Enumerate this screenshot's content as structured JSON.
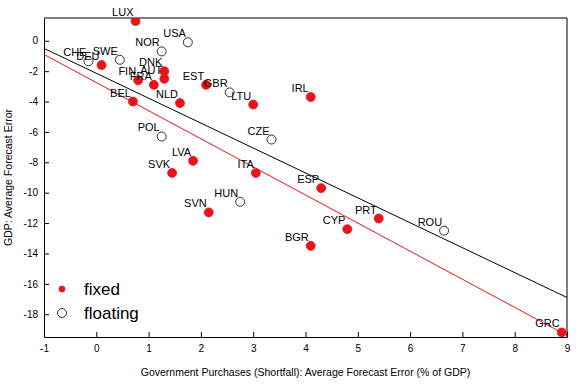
{
  "chart_data": {
    "type": "scatter",
    "x_label": "Government Purchases (Shortfall): Average Forecast Error (% of GDP)",
    "y_label": "GDP: Average Forecast Error",
    "xlim": [
      -1,
      9
    ],
    "ylim": [
      -19.5,
      1.5
    ],
    "xticks": [
      -1,
      0,
      1,
      2,
      3,
      4,
      5,
      6,
      7,
      8,
      9
    ],
    "yticks": [
      -18,
      -16,
      -14,
      -12,
      -10,
      -8,
      -6,
      -4,
      -2,
      0
    ],
    "grid": false,
    "legend": "lower left",
    "series": [
      {
        "name": "fixed",
        "color": "#e8141b",
        "marker": "filled",
        "labels": [
          "LUX",
          "DEU",
          "FIN",
          "AUT",
          "DNK",
          "FRA",
          "BEL",
          "NLD",
          "EST",
          "LTU",
          "IRL",
          "LVA",
          "SVK",
          "ITA",
          "ESP",
          "SVN",
          "CYP",
          "PRT",
          "BGR",
          "GRC"
        ],
        "x": [
          0.75,
          0.1,
          0.8,
          1.3,
          1.3,
          1.1,
          0.7,
          1.6,
          2.1,
          3.0,
          4.1,
          1.85,
          1.45,
          3.05,
          4.3,
          2.15,
          4.8,
          5.4,
          4.1,
          8.9
        ],
        "values": [
          1.3,
          -1.6,
          -2.6,
          -2.5,
          -2.0,
          -2.9,
          -4.0,
          -4.1,
          -2.9,
          -4.2,
          -3.7,
          -7.9,
          -8.7,
          -8.7,
          -9.7,
          -11.3,
          -12.4,
          -11.7,
          -13.5,
          -19.2
        ],
        "fit": {
          "x": [
            -1,
            9
          ],
          "values": [
            -0.9,
            -19.4
          ]
        }
      },
      {
        "name": "floating",
        "color": "#000000",
        "marker": "open",
        "labels": [
          "CHE",
          "SWE",
          "NOR",
          "USA",
          "GBR",
          "POL",
          "CZE",
          "HUN",
          "ROU"
        ],
        "x": [
          -0.15,
          0.45,
          1.25,
          1.75,
          2.55,
          1.25,
          3.35,
          2.75,
          6.65
        ],
        "values": [
          -1.35,
          -1.25,
          -0.7,
          -0.1,
          -3.4,
          -6.3,
          -6.5,
          -10.6,
          -12.5
        ],
        "fit": {
          "x": [
            -1,
            9
          ],
          "values": [
            -0.5,
            -16.9
          ]
        }
      }
    ]
  }
}
